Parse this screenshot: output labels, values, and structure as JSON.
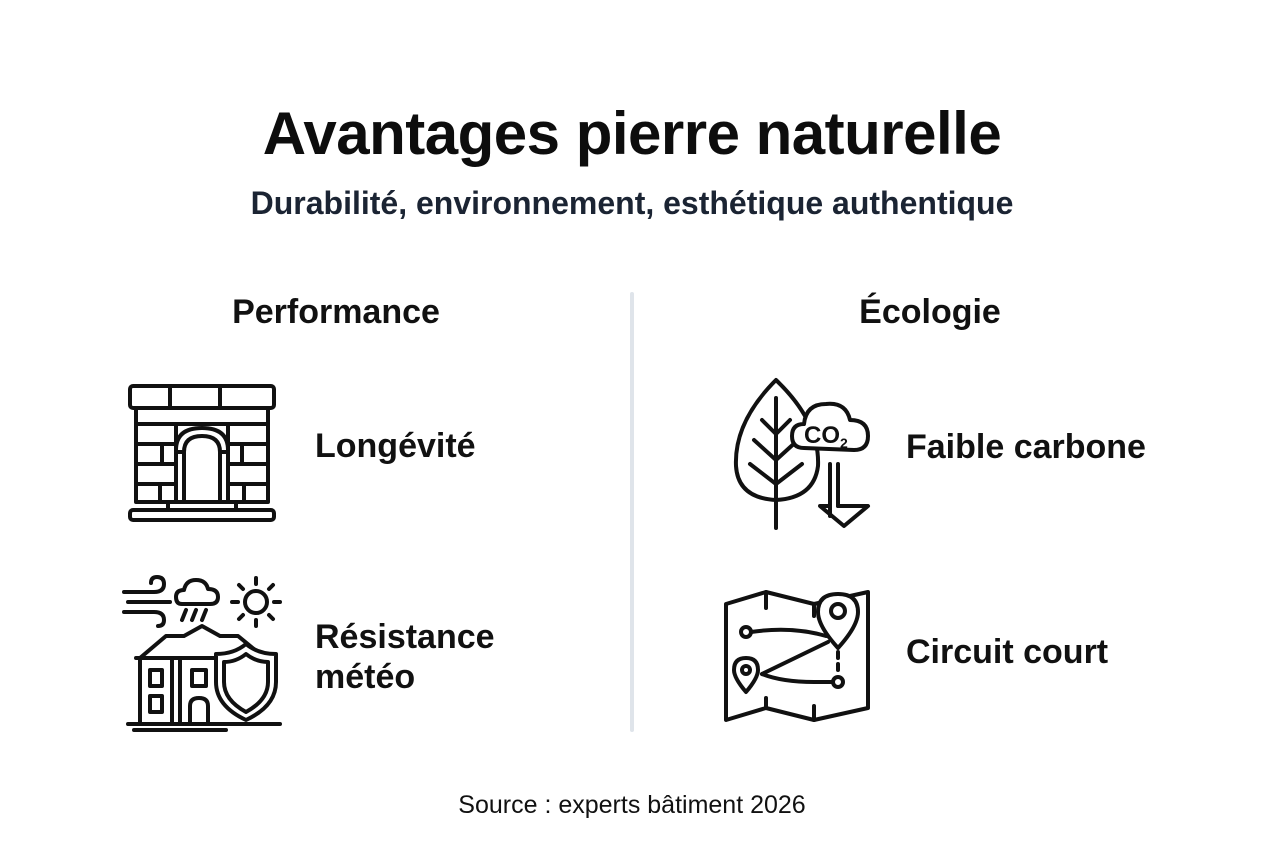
{
  "header": {
    "title": "Avantages pierre naturelle",
    "subtitle": "Durabilité, environnement, esthétique authentique"
  },
  "columns": {
    "left": {
      "heading": "Performance",
      "items": [
        {
          "label": "Longévité",
          "icon": "stone-arch-icon"
        },
        {
          "label_line1": "Résistance",
          "label_line2": "météo",
          "icon": "weather-shield-building-icon"
        }
      ]
    },
    "right": {
      "heading": "Écologie",
      "items": [
        {
          "label": "Faible carbone",
          "icon": "leaf-co2-down-icon",
          "icon_text": "CO",
          "icon_sub": "2"
        },
        {
          "label": "Circuit court",
          "icon": "map-route-icon"
        }
      ]
    }
  },
  "footer": {
    "source": "Source : experts bâtiment 2026"
  },
  "colors": {
    "text": "#111111",
    "subtitle": "#1b2433",
    "divider": "#dfe4ea",
    "background": "#ffffff"
  }
}
